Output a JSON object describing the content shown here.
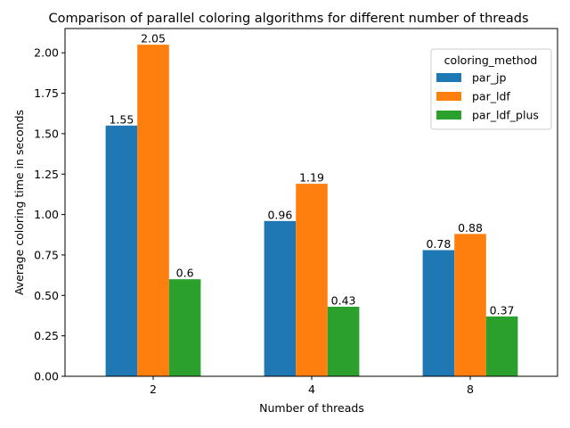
{
  "chart_data": {
    "type": "bar",
    "title": "Comparison of parallel coloring algorithms for different number of threads",
    "xlabel": "Number of threads",
    "ylabel": "Average coloring time in seconds",
    "categories": [
      "2",
      "4",
      "8"
    ],
    "series": [
      {
        "name": "par_jp",
        "color": "#1f77b4",
        "values": [
          1.55,
          0.96,
          0.78
        ],
        "labels": [
          "1.55",
          "0.96",
          "0.78"
        ]
      },
      {
        "name": "par_ldf",
        "color": "#ff7f0e",
        "values": [
          2.05,
          1.19,
          0.88
        ],
        "labels": [
          "2.05",
          "1.19",
          "0.88"
        ]
      },
      {
        "name": "par_ldf_plus",
        "color": "#2ca02c",
        "values": [
          0.6,
          0.43,
          0.37
        ],
        "labels": [
          "0.6",
          "0.43",
          "0.37"
        ]
      }
    ],
    "ylim": [
      0,
      2.15
    ],
    "yticks": [
      "0.00",
      "0.25",
      "0.50",
      "0.75",
      "1.00",
      "1.25",
      "1.50",
      "1.75",
      "2.00"
    ],
    "grid": false,
    "legend": {
      "title": "coloring_method",
      "placement": "top-right"
    }
  }
}
